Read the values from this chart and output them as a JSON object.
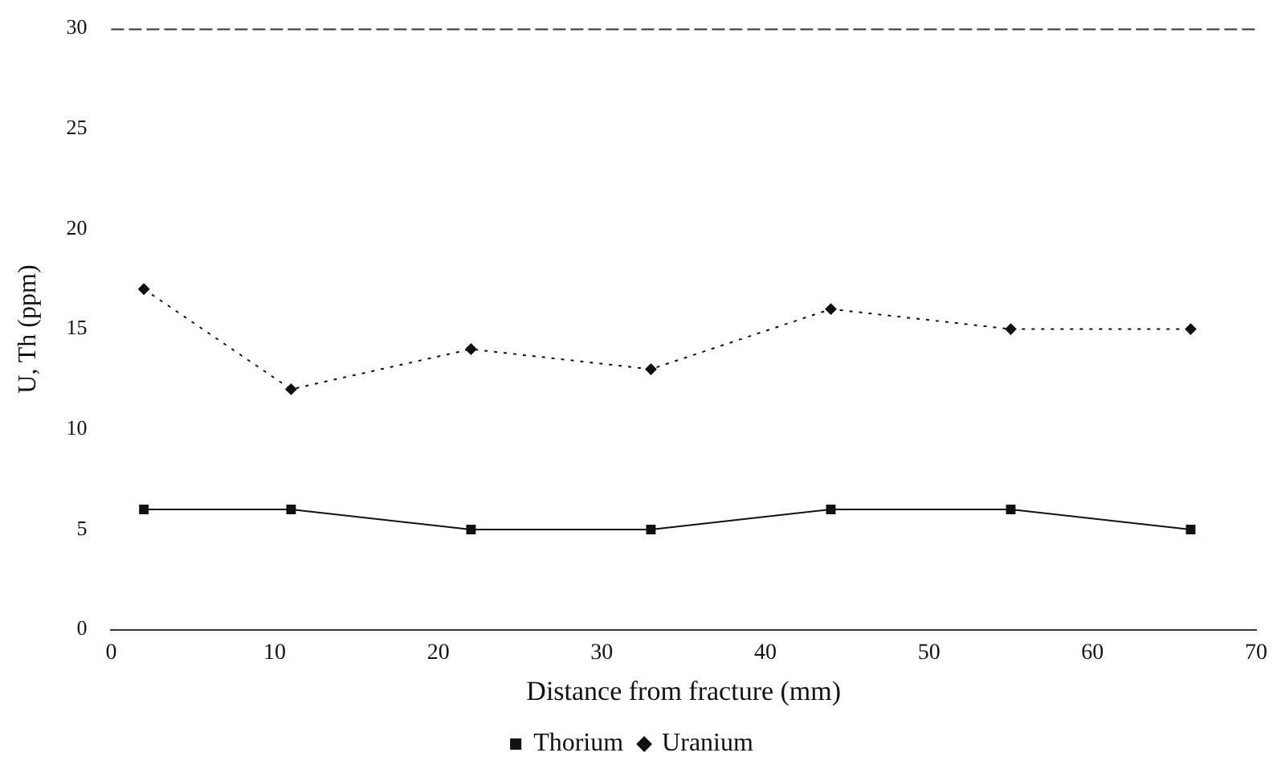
{
  "chart_data": {
    "type": "line",
    "xlabel": "Distance from fracture (mm)",
    "ylabel": "U, Th (ppm)",
    "xlim": [
      0,
      70
    ],
    "xticks": [
      0,
      10,
      20,
      30,
      40,
      50,
      60,
      70
    ],
    "ylim": [
      0,
      30
    ],
    "yticks": [
      0,
      5,
      10,
      15,
      20,
      25,
      30
    ],
    "grid": false,
    "legend": "bottom",
    "series": [
      {
        "name": "Thorium",
        "color": "#111111",
        "x": [
          2,
          11,
          22,
          33,
          44,
          55,
          66
        ],
        "values": [
          6,
          6,
          5,
          5,
          6,
          6,
          5
        ],
        "marker": "square",
        "line_style": "solid"
      },
      {
        "name": "Uranium",
        "color": "#111111",
        "x": [
          2,
          11,
          22,
          33,
          44,
          55,
          66
        ],
        "values": [
          17,
          12,
          14,
          13,
          16,
          15,
          15
        ],
        "marker": "diamond",
        "line_style": "dotted"
      }
    ]
  }
}
